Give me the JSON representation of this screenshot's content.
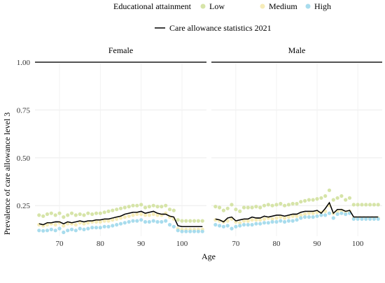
{
  "chart_data": {
    "type": "scatter",
    "xlabel": "Age",
    "ylabel": "Prevalence of care allowance level 3",
    "xlim": [
      64,
      106
    ],
    "ylim": [
      0.09,
      1.0
    ],
    "x_ticks": [
      70,
      80,
      90,
      100
    ],
    "y_ticks": [
      0.25,
      0.5,
      0.75,
      1.0
    ],
    "y_tick_labels": [
      "0.25",
      "0.50",
      "0.75",
      "1.00"
    ],
    "grid": true,
    "legend": {
      "position": "top",
      "title": "Educational attainment",
      "items": [
        {
          "label": "Low",
          "color": "#d6e4a8"
        },
        {
          "label": "Medium",
          "color": "#f6ecb8"
        },
        {
          "label": "High",
          "color": "#a8dced"
        }
      ],
      "line_label": "Care allowance statistics 2021",
      "line_color": "#000000"
    },
    "x": [
      65,
      66,
      67,
      68,
      69,
      70,
      71,
      72,
      73,
      74,
      75,
      76,
      77,
      78,
      79,
      80,
      81,
      82,
      83,
      84,
      85,
      86,
      87,
      88,
      89,
      90,
      91,
      92,
      93,
      94,
      95,
      96,
      97,
      98,
      99,
      100,
      101,
      102,
      103,
      104,
      105
    ],
    "panels": [
      {
        "label": "Female",
        "series": [
          {
            "name": "Low",
            "color": "#d6e4a8",
            "values": [
              0.2,
              0.195,
              0.205,
              0.21,
              0.2,
              0.21,
              0.19,
              0.2,
              0.21,
              0.2,
              0.205,
              0.2,
              0.21,
              0.205,
              0.21,
              0.21,
              0.215,
              0.22,
              0.225,
              0.23,
              0.235,
              0.24,
              0.245,
              0.25,
              0.25,
              0.255,
              0.24,
              0.245,
              0.25,
              0.245,
              0.245,
              0.25,
              0.23,
              0.225,
              0.175,
              0.17,
              0.17,
              0.17,
              0.17,
              0.17,
              0.17
            ]
          },
          {
            "name": "Medium",
            "color": "#f6ecb8",
            "values": [
              0.15,
              0.145,
              0.15,
              0.155,
              0.15,
              0.16,
              0.145,
              0.155,
              0.155,
              0.15,
              0.16,
              0.155,
              0.16,
              0.165,
              0.165,
              0.165,
              0.17,
              0.17,
              0.175,
              0.18,
              0.185,
              0.19,
              0.195,
              0.2,
              0.205,
              0.205,
              0.2,
              0.2,
              0.205,
              0.2,
              0.2,
              0.21,
              0.19,
              0.18,
              0.13,
              0.125,
              0.125,
              0.125,
              0.125,
              0.125,
              0.125
            ]
          },
          {
            "name": "High",
            "color": "#a8dced",
            "values": [
              0.12,
              0.118,
              0.12,
              0.125,
              0.12,
              0.13,
              0.11,
              0.12,
              0.125,
              0.12,
              0.13,
              0.125,
              0.13,
              0.135,
              0.135,
              0.135,
              0.14,
              0.14,
              0.145,
              0.15,
              0.155,
              0.16,
              0.165,
              0.17,
              0.17,
              0.175,
              0.165,
              0.165,
              0.17,
              0.165,
              0.165,
              0.17,
              0.15,
              0.14,
              0.12,
              0.115,
              0.115,
              0.115,
              0.115,
              0.115,
              0.115
            ]
          },
          {
            "name": "Care allowance statistics 2021",
            "color": "#000000",
            "line": true,
            "values": [
              0.155,
              0.15,
              0.16,
              0.16,
              0.165,
              0.165,
              0.155,
              0.165,
              0.16,
              0.165,
              0.17,
              0.165,
              0.17,
              0.17,
              0.175,
              0.175,
              0.18,
              0.18,
              0.185,
              0.19,
              0.195,
              0.205,
              0.21,
              0.215,
              0.215,
              0.22,
              0.21,
              0.215,
              0.22,
              0.21,
              0.205,
              0.205,
              0.195,
              0.19,
              0.145,
              0.14,
              0.14,
              0.14,
              0.14,
              0.14,
              0.14
            ]
          }
        ]
      },
      {
        "label": "Male",
        "series": [
          {
            "name": "Low",
            "color": "#d6e4a8",
            "values": [
              0.245,
              0.24,
              0.225,
              0.235,
              0.255,
              0.23,
              0.22,
              0.24,
              0.24,
              0.24,
              0.245,
              0.24,
              0.25,
              0.255,
              0.25,
              0.255,
              0.26,
              0.25,
              0.255,
              0.26,
              0.26,
              0.27,
              0.275,
              0.28,
              0.28,
              0.285,
              0.29,
              0.3,
              0.33,
              0.28,
              0.29,
              0.3,
              0.28,
              0.29,
              0.255,
              0.255,
              0.255,
              0.255,
              0.255,
              0.255,
              0.255
            ]
          },
          {
            "name": "Medium",
            "color": "#f6ecb8",
            "values": [
              0.175,
              0.17,
              0.165,
              0.17,
              0.18,
              0.165,
              0.16,
              0.17,
              0.17,
              0.175,
              0.175,
              0.175,
              0.18,
              0.185,
              0.18,
              0.185,
              0.19,
              0.185,
              0.19,
              0.195,
              0.195,
              0.2,
              0.205,
              0.21,
              0.21,
              0.215,
              0.215,
              0.22,
              0.25,
              0.21,
              0.22,
              0.225,
              0.215,
              0.22,
              0.185,
              0.185,
              0.185,
              0.185,
              0.185,
              0.185,
              0.185
            ]
          },
          {
            "name": "High",
            "color": "#a8dced",
            "values": [
              0.15,
              0.145,
              0.14,
              0.145,
              0.13,
              0.14,
              0.145,
              0.15,
              0.15,
              0.15,
              0.155,
              0.155,
              0.16,
              0.16,
              0.165,
              0.165,
              0.17,
              0.165,
              0.17,
              0.17,
              0.175,
              0.185,
              0.19,
              0.19,
              0.19,
              0.195,
              0.2,
              0.2,
              0.21,
              0.185,
              0.205,
              0.21,
              0.205,
              0.21,
              0.18,
              0.18,
              0.18,
              0.18,
              0.18,
              0.18,
              0.18
            ]
          },
          {
            "name": "Care allowance statistics 2021",
            "color": "#000000",
            "line": true,
            "values": [
              0.18,
              0.175,
              0.165,
              0.185,
              0.19,
              0.17,
              0.175,
              0.18,
              0.18,
              0.19,
              0.185,
              0.185,
              0.195,
              0.19,
              0.195,
              0.2,
              0.2,
              0.195,
              0.2,
              0.205,
              0.205,
              0.215,
              0.22,
              0.22,
              0.22,
              0.225,
              0.21,
              0.235,
              0.265,
              0.21,
              0.23,
              0.23,
              0.22,
              0.225,
              0.19,
              0.19,
              0.19,
              0.19,
              0.19,
              0.19,
              0.19
            ]
          }
        ]
      }
    ]
  }
}
